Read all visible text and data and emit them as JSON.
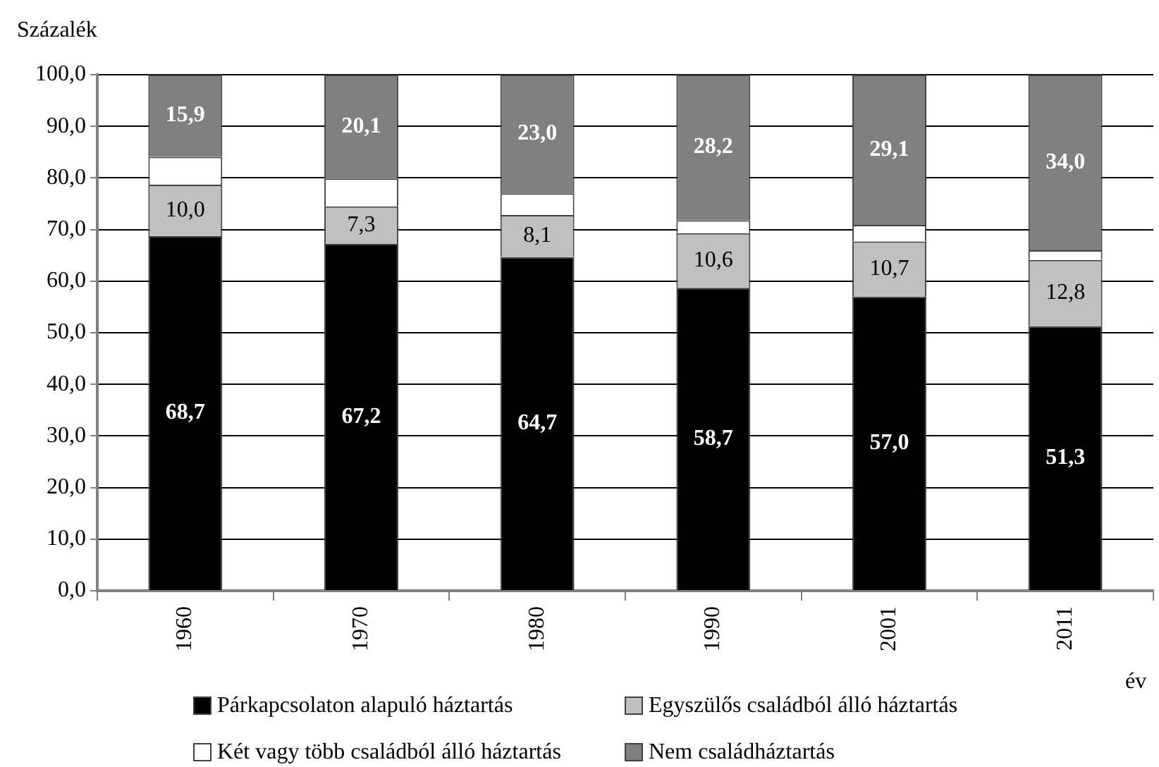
{
  "chart_data": {
    "type": "bar",
    "ylabel": "Százalék",
    "xlabel": "év",
    "categories": [
      "1960",
      "1970",
      "1980",
      "1990",
      "2001",
      "2011"
    ],
    "stacked": true,
    "series": [
      {
        "name": "Párkapcsolaton alapuló háztartás",
        "color": "#000000",
        "values": [
          68.7,
          67.2,
          64.7,
          58.7,
          57.0,
          51.3
        ],
        "value_labels": [
          "68,7",
          "67,2",
          "64,7",
          "58,7",
          "57,0",
          "51,3"
        ]
      },
      {
        "name": "Egyszülős családból álló háztartás",
        "color": "#c0c0c0",
        "values": [
          10.0,
          7.3,
          8.1,
          10.6,
          10.7,
          12.8
        ],
        "value_labels": [
          "10,0",
          "7,3",
          "8,1",
          "10,6",
          "10,7",
          "12,8"
        ]
      },
      {
        "name": "Két vagy több családból álló háztartás",
        "color": "#ffffff",
        "values": [
          5.4,
          5.4,
          4.2,
          2.5,
          3.2,
          1.9
        ]
      },
      {
        "name": "Nem családháztartás",
        "color": "#808080",
        "values": [
          15.9,
          20.1,
          23.0,
          28.2,
          29.1,
          34.0
        ],
        "value_labels": [
          "15,9",
          "20,1",
          "23,0",
          "28,2",
          "29,1",
          "34,0"
        ]
      }
    ],
    "ylim": [
      0,
      100
    ],
    "yticks": [
      {
        "value": 0,
        "label": "0,0"
      },
      {
        "value": 10,
        "label": "10,0"
      },
      {
        "value": 20,
        "label": "20,0"
      },
      {
        "value": 30,
        "label": "30,0"
      },
      {
        "value": 40,
        "label": "40,0"
      },
      {
        "value": 50,
        "label": "50,0"
      },
      {
        "value": 60,
        "label": "60,0"
      },
      {
        "value": 70,
        "label": "70,0"
      },
      {
        "value": 80,
        "label": "80,0"
      },
      {
        "value": 90,
        "label": "90,0"
      },
      {
        "value": 100,
        "label": "100,0"
      }
    ],
    "grid": "y",
    "legend": "bottom"
  }
}
